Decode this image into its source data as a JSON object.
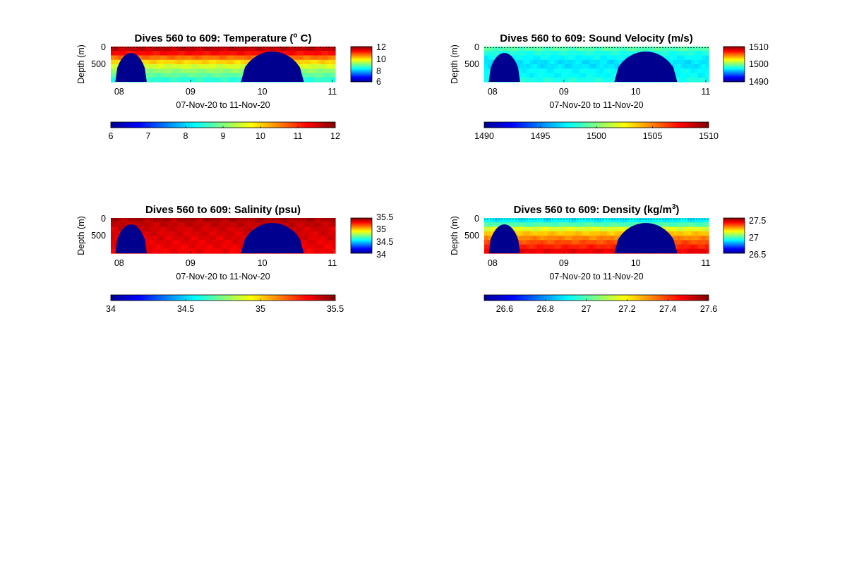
{
  "palette": [
    "#00008f",
    "#0000ff",
    "#0080ff",
    "#00ffff",
    "#80ff80",
    "#ffff00",
    "#ff8000",
    "#ff0000",
    "#800000"
  ],
  "chart_data": [
    {
      "type": "heatmap",
      "title": "Dives 560 to 609: Temperature (",
      "title_sup": "o",
      "title_end": " C)",
      "xlabel": "07-Nov-20 to 11-Nov-20",
      "ylabel": "Depth (m)",
      "x_tick_labels": [
        "08",
        "09",
        "10",
        "11"
      ],
      "y_tick_labels": [
        "0",
        "500"
      ],
      "side_colorbar_ticks": [
        "12",
        "10",
        "8",
        "6"
      ],
      "colorbar": {
        "min": 6,
        "max": 12,
        "ticks": [
          "6",
          "7",
          "8",
          "9",
          "10",
          "11",
          "12"
        ]
      },
      "profile_by_depth": [
        11.6,
        11.2,
        10.6,
        10.0,
        9.5,
        9.1,
        8.8,
        8.5
      ]
    },
    {
      "type": "heatmap",
      "title": "Dives 560 to 609: Sound Velocity (m/s)",
      "title_sup": "",
      "title_end": "",
      "xlabel": "07-Nov-20 to 11-Nov-20",
      "ylabel": "Depth (m)",
      "x_tick_labels": [
        "08",
        "09",
        "10",
        "11"
      ],
      "y_tick_labels": [
        "0",
        "500"
      ],
      "side_colorbar_ticks": [
        "1510",
        "1500",
        "1490"
      ],
      "colorbar": {
        "min": 1490,
        "max": 1510,
        "ticks": [
          "1490",
          "1495",
          "1500",
          "1505",
          "1510"
        ]
      },
      "profile_by_depth": [
        1499.0,
        1498.0,
        1497.5,
        1497.0,
        1497.0,
        1497.5,
        1497.5,
        1498.0
      ]
    },
    {
      "type": "heatmap",
      "title": "Dives 560 to 609: Salinity (psu)",
      "title_sup": "",
      "title_end": "",
      "xlabel": "07-Nov-20 to 11-Nov-20",
      "ylabel": "Depth (m)",
      "x_tick_labels": [
        "08",
        "09",
        "10",
        "11"
      ],
      "y_tick_labels": [
        "0",
        "500"
      ],
      "side_colorbar_ticks": [
        "35.5",
        "35",
        "34.5",
        "34"
      ],
      "colorbar": {
        "min": 34,
        "max": 35.5,
        "ticks": [
          "34",
          "34.5",
          "35",
          "35.5"
        ]
      },
      "profile_by_depth": [
        35.42,
        35.4,
        35.38,
        35.37,
        35.36,
        35.35,
        35.34,
        35.33
      ]
    },
    {
      "type": "heatmap",
      "title": "Dives 560 to 609: Density (kg/m",
      "title_sup": "3",
      "title_end": ")",
      "xlabel": "07-Nov-20 to 11-Nov-20",
      "ylabel": "Depth (m)",
      "x_tick_labels": [
        "08",
        "09",
        "10",
        "11"
      ],
      "y_tick_labels": [
        "0",
        "500"
      ],
      "side_colorbar_ticks": [
        "27.5",
        "27",
        "26.5"
      ],
      "colorbar": {
        "min": 26.5,
        "max": 27.6,
        "ticks": [
          "26.6",
          "26.8",
          "27",
          "27.2",
          "27.4",
          "27.6"
        ]
      },
      "profile_by_depth": [
        26.9,
        27.0,
        27.15,
        27.25,
        27.32,
        27.38,
        27.43,
        27.48
      ]
    }
  ]
}
